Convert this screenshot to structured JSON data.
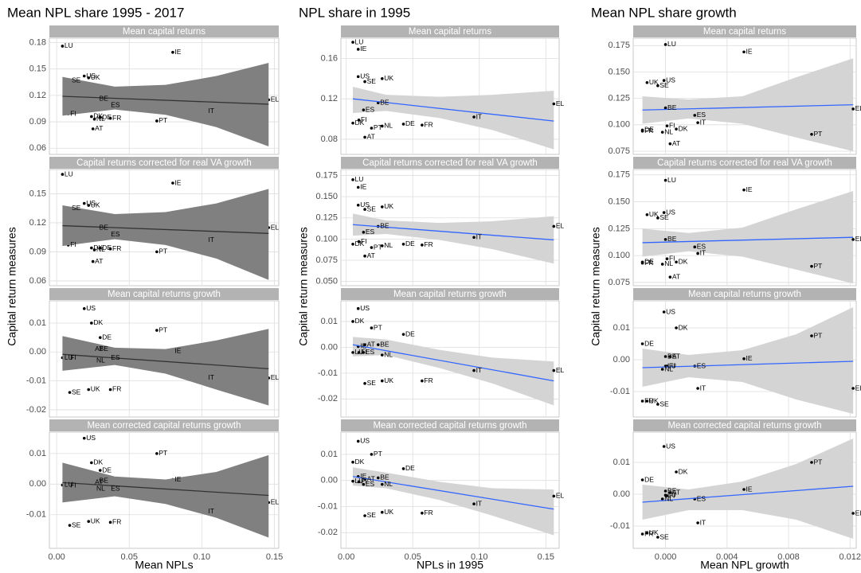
{
  "chart_data": {
    "type": "scatter",
    "labels": [
      "AT",
      "BE",
      "DE",
      "DK",
      "EL",
      "ES",
      "FI",
      "FR",
      "IE",
      "IT",
      "LU",
      "NL",
      "PT",
      "SE",
      "UK",
      "US"
    ],
    "rows": [
      {
        "strip": "Mean capital returns",
        "values": [
          0.082,
          0.116,
          0.095,
          0.096,
          0.115,
          0.109,
          0.099,
          0.094,
          0.169,
          0.102,
          0.176,
          0.093,
          0.091,
          0.137,
          0.14,
          0.142
        ]
      },
      {
        "strip": "Capital returns corrected for real VA growth",
        "values": [
          0.08,
          0.115,
          0.094,
          0.094,
          0.115,
          0.108,
          0.097,
          0.093,
          0.161,
          0.102,
          0.17,
          0.092,
          0.09,
          0.135,
          0.138,
          0.14
        ]
      },
      {
        "strip": "Mean capital returns growth",
        "values": [
          0.001,
          0.001,
          0.005,
          0.01,
          -0.009,
          -0.002,
          -0.002,
          -0.013,
          0.0003,
          -0.009,
          -0.002,
          -0.003,
          0.0075,
          -0.014,
          -0.013,
          0.015
        ]
      },
      {
        "strip": "Mean corrected capital returns growth",
        "values": [
          0.0005,
          0.001,
          0.0045,
          0.007,
          -0.006,
          -0.0015,
          -0.0005,
          -0.0125,
          0.0015,
          -0.009,
          -0.0003,
          -0.0015,
          0.01,
          -0.0135,
          -0.0122,
          0.015
        ]
      }
    ],
    "columns": [
      {
        "title": "Mean NPL share 1995 - 2017",
        "xlabel": "Mean NPLs",
        "ylabel": "Capital return measures",
        "band_color": "#808080",
        "line_color": "#333333",
        "band_over_points": true,
        "x": [
          0.025,
          0.028,
          0.03,
          0.024,
          0.146,
          0.036,
          0.008,
          0.037,
          0.08,
          0.103,
          0.004,
          0.026,
          0.069,
          0.009,
          0.022,
          0.019
        ],
        "xlim": [
          -0.005,
          0.153
        ],
        "xticks": [
          {
            "value": 0,
            "label": "0.00"
          },
          0.05,
          {
            "value": 0.1,
            "label": "0.10"
          },
          0.15
        ],
        "fit_x": [
          0.004,
          0.146
        ],
        "band_x": [
          0.004,
          0.04,
          0.075,
          0.11,
          0.146
        ],
        "panels": [
          {
            "ylim": [
              0.053,
              0.185
            ],
            "yticks": [
              0.06,
              0.09,
              0.12,
              0.15,
              0.18
            ],
            "fit": [
              0.119,
              0.11
            ],
            "lower": [
              0.097,
              0.104,
              0.098,
              0.084,
              0.062
            ],
            "upper": [
              0.141,
              0.13,
              0.132,
              0.142,
              0.157
            ]
          },
          {
            "ylim": [
              0.055,
              0.175
            ],
            "yticks": [
              0.06,
              0.09,
              0.12,
              0.15
            ],
            "fit": [
              0.117,
              0.109
            ],
            "lower": [
              0.096,
              0.103,
              0.097,
              0.083,
              0.061
            ],
            "upper": [
              0.138,
              0.129,
              0.131,
              0.14,
              0.155
            ]
          },
          {
            "ylim": [
              -0.0225,
              0.0177
            ],
            "yticks": [
              -0.02,
              -0.01,
              {
                "value": 0,
                "label": "0.00"
              },
              0.01
            ],
            "fit": [
              -0.0008,
              -0.0058
            ],
            "lower": [
              -0.0065,
              -0.0045,
              -0.0075,
              -0.013,
              -0.0185
            ],
            "upper": [
              0.0055,
              0.0015,
              0.001,
              0.004,
              0.008
            ]
          },
          {
            "ylim": [
              -0.021,
              0.017
            ],
            "yticks": [
              -0.01,
              {
                "value": 0,
                "label": "0.00"
              },
              0.01
            ],
            "fit": [
              0.0005,
              -0.0037
            ],
            "lower": [
              -0.006,
              -0.004,
              -0.0065,
              -0.011,
              -0.0175
            ],
            "upper": [
              0.007,
              0.0025,
              0.0015,
              0.004,
              0.0095
            ]
          }
        ]
      },
      {
        "title": "NPL share in 1995",
        "xlabel": "NPLs in 1995",
        "ylabel": "Capital return measures",
        "band_color": "#d4d4d4",
        "line_color": "#3366ff",
        "band_over_points": false,
        "x": [
          0.014,
          0.024,
          0.043,
          0.005,
          0.156,
          0.013,
          0.0095,
          0.057,
          0.009,
          0.096,
          0.005,
          0.027,
          0.019,
          0.014,
          0.027,
          0.009
        ],
        "xlim": [
          -0.004,
          0.16
        ],
        "xticks": [
          {
            "value": 0,
            "label": "0.00"
          },
          0.05,
          {
            "value": 0.1,
            "label": "0.10"
          },
          0.15
        ],
        "fit_x": [
          0.005,
          0.156
        ],
        "band_x": [
          0.005,
          0.03,
          0.07,
          0.11,
          0.156
        ],
        "panels": [
          {
            "ylim": [
              0.065,
              0.18
            ],
            "yticks": [
              0.08,
              0.12,
              0.16
            ],
            "fit": [
              0.12,
              0.098
            ],
            "lower": [
              0.106,
              0.108,
              0.101,
              0.089,
              0.07
            ],
            "upper": [
              0.132,
              0.124,
              0.122,
              0.124,
              0.128
            ]
          },
          {
            "ylim": [
              0.045,
              0.182
            ],
            "yticks": [
              {
                "value": 0.05,
                "label": "0.050"
              },
              0.075,
              {
                "value": 0.1,
                "label": "0.100"
              },
              0.125,
              {
                "value": 0.15,
                "label": "0.150"
              },
              0.175
            ],
            "fit": [
              0.117,
              0.099
            ],
            "lower": [
              0.104,
              0.106,
              0.099,
              0.088,
              0.071
            ],
            "upper": [
              0.13,
              0.122,
              0.119,
              0.121,
              0.127
            ]
          },
          {
            "ylim": [
              -0.027,
              0.018
            ],
            "yticks": [
              -0.02,
              -0.01,
              {
                "value": 0,
                "label": "0.00"
              },
              0.01
            ],
            "fit": [
              0.001,
              -0.013
            ],
            "lower": [
              -0.0035,
              -0.003,
              -0.008,
              -0.014,
              -0.0225
            ],
            "upper": [
              0.004,
              0.003,
              -0.001,
              -0.004,
              -0.0055
            ]
          },
          {
            "ylim": [
              -0.026,
              0.0185
            ],
            "yticks": [
              -0.02,
              -0.01,
              {
                "value": 0,
                "label": "0.00"
              },
              0.01
            ],
            "fit": [
              0.0015,
              -0.011
            ],
            "lower": [
              -0.002,
              -0.003,
              -0.0075,
              -0.0135,
              -0.021
            ],
            "upper": [
              0.005,
              0.003,
              -0.0005,
              -0.003,
              -0.0035
            ]
          }
        ]
      },
      {
        "title": "Mean NPL share growth",
        "xlabel": "Mean NPL growth",
        "ylabel": "Capital return measures",
        "band_color": "#d4d4d4",
        "line_color": "#3366ff",
        "band_over_points": false,
        "x": [
          0.0003,
          0,
          -0.0015,
          0.0007,
          0.0122,
          0.0019,
          0.0001,
          -0.0015,
          0.0051,
          0.0021,
          0,
          -0.0002,
          0.0095,
          -0.0005,
          -0.0012,
          -0.0001
        ],
        "xlim": [
          -0.0021,
          0.0124
        ],
        "xticks": [
          {
            "value": 0,
            "label": "0.000"
          },
          0.004,
          0.008,
          0.012
        ],
        "fit_x": [
          -0.0015,
          0.0122
        ],
        "band_x": [
          -0.0015,
          0.0015,
          0.005,
          0.0085,
          0.0122
        ],
        "panels": [
          {
            "ylim": [
              0.072,
              0.182
            ],
            "yticks": [
              0.075,
              {
                "value": 0.1,
                "label": "0.100"
              },
              0.125,
              {
                "value": 0.15,
                "label": "0.150"
              },
              0.175
            ],
            "fit": [
              0.114,
              0.119
            ],
            "lower": [
              0.101,
              0.106,
              0.101,
              0.088,
              0.075
            ],
            "upper": [
              0.127,
              0.124,
              0.127,
              0.145,
              0.163
            ]
          },
          {
            "ylim": [
              0.072,
              0.18
            ],
            "yticks": [
              0.075,
              {
                "value": 0.1,
                "label": "0.100"
              },
              0.125,
              {
                "value": 0.15,
                "label": "0.150"
              },
              0.175
            ],
            "fit": [
              0.112,
              0.117
            ],
            "lower": [
              0.099,
              0.104,
              0.099,
              0.087,
              0.074
            ],
            "upper": [
              0.125,
              0.121,
              0.126,
              0.143,
              0.16
            ]
          },
          {
            "ylim": [
              -0.018,
              0.0185
            ],
            "yticks": [
              -0.01,
              {
                "value": 0,
                "label": "0.00"
              },
              0.01
            ],
            "fit": [
              -0.0025,
              -0.0005
            ],
            "lower": [
              -0.0085,
              -0.0055,
              -0.007,
              -0.0125,
              -0.017
            ],
            "upper": [
              0.0035,
              0.0015,
              0.003,
              0.008,
              0.0165
            ]
          },
          {
            "ylim": [
              -0.017,
              0.0195
            ],
            "yticks": [
              -0.01,
              {
                "value": 0,
                "label": "0.00"
              },
              0.01
            ],
            "fit": [
              -0.0025,
              0.0025
            ],
            "lower": [
              -0.008,
              -0.005,
              -0.005,
              -0.008,
              -0.014
            ],
            "upper": [
              0.003,
              0.0015,
              0.004,
              0.0095,
              0.0175
            ]
          }
        ]
      }
    ]
  }
}
